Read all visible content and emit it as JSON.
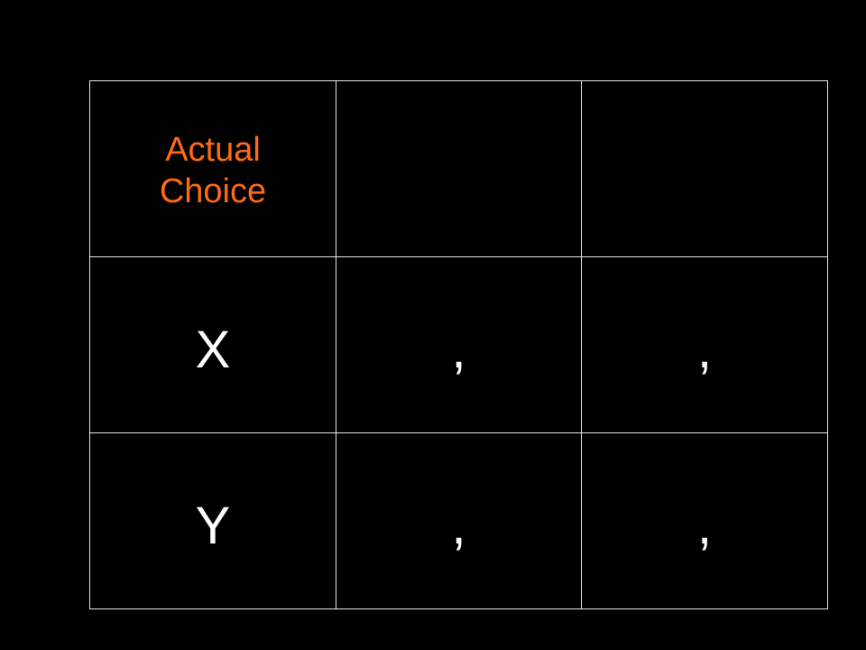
{
  "colors": {
    "background": "#000000",
    "header_accent": "#ff6a13",
    "text": "#ffffff",
    "grid_line": "#e6e6e6"
  },
  "table": {
    "header": {
      "corner_label": "Actual Choice",
      "col1": "",
      "col2": ""
    },
    "rows": [
      {
        "label": "X",
        "cells": [
          ",",
          ","
        ]
      },
      {
        "label": "Y",
        "cells": [
          ",",
          ","
        ]
      }
    ]
  }
}
